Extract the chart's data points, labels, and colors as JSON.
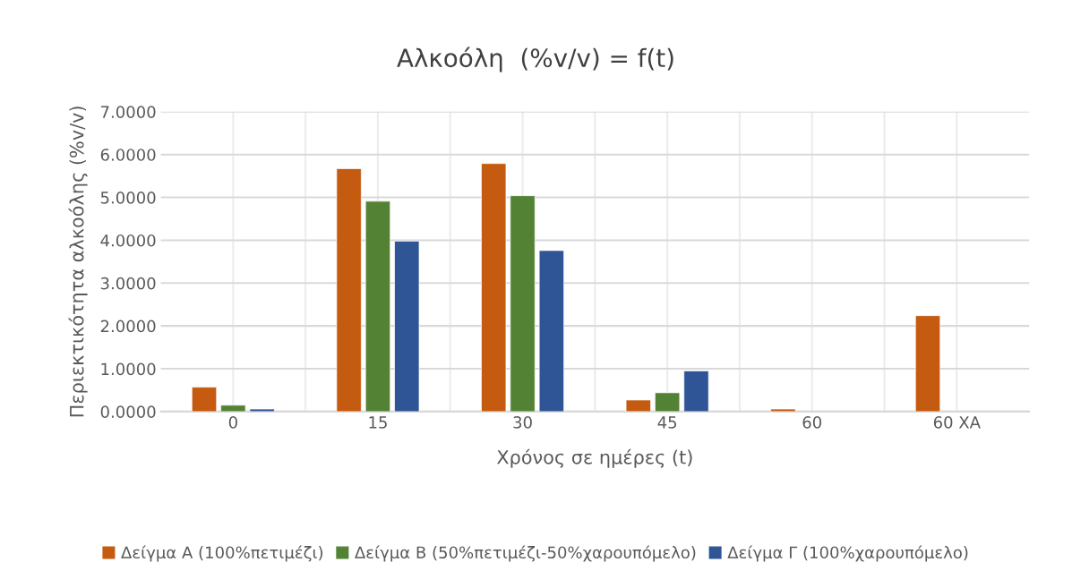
{
  "chart_data": {
    "type": "bar",
    "title": "Αλκοόλη  (%v/v) = f(t)",
    "xlabel": "Χρόνος σε ημέρες (t)",
    "ylabel": "Περιεκτικότητα αλκοόλης (%v/v)",
    "categories": [
      "0",
      "15",
      "30",
      "45",
      "60",
      "60 XA"
    ],
    "series": [
      {
        "name": "Δείγμα Α (100%πετιμέζι)",
        "color": "#c55a11",
        "values": [
          0.57,
          5.67,
          5.79,
          0.27,
          0.06,
          2.24
        ]
      },
      {
        "name": "Δείγμα Β (50%πετιμέζι-50%χαρουπόμελο)",
        "color": "#548235",
        "values": [
          0.15,
          4.91,
          5.04,
          0.44,
          null,
          null
        ]
      },
      {
        "name": "Δείγμα Γ (100%χαρουπόμελο)",
        "color": "#2f5597",
        "values": [
          0.06,
          3.98,
          3.76,
          0.95,
          null,
          null
        ]
      }
    ],
    "ylim": [
      0,
      7
    ],
    "yticks": [
      {
        "value": 0,
        "label": "0.0000"
      },
      {
        "value": 1,
        "label": "1.0000"
      },
      {
        "value": 2,
        "label": "2.0000"
      },
      {
        "value": 3,
        "label": "3.0000"
      },
      {
        "value": 4,
        "label": "4.0000"
      },
      {
        "value": 5,
        "label": "5.0000"
      },
      {
        "value": 6,
        "label": "6.0000"
      },
      {
        "value": 7,
        "label": "7.0000"
      }
    ],
    "grid": true,
    "legend": "bottom"
  }
}
